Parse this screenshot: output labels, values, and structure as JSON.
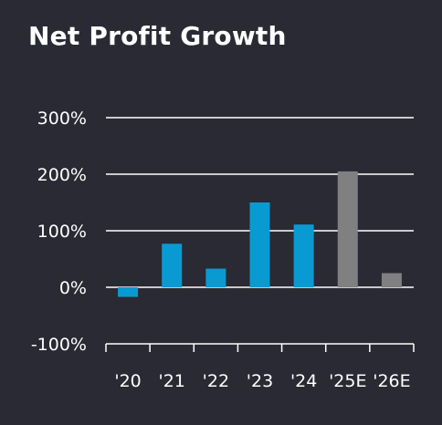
{
  "chart_data": {
    "type": "bar",
    "title": "Net Profit Growth",
    "categories": [
      "'20",
      "'21",
      "'22",
      "'23",
      "'24",
      "'25E",
      "'26E"
    ],
    "values": [
      -17,
      77,
      33,
      150,
      111,
      205,
      25
    ],
    "estimated": [
      false,
      false,
      false,
      false,
      false,
      true,
      true
    ],
    "yticks": [
      -100,
      0,
      100,
      200,
      300
    ],
    "ytick_labels": [
      "-100%",
      "0%",
      "100%",
      "200%",
      "300%"
    ],
    "ylim": [
      -100,
      300
    ],
    "xlabel": "",
    "ylabel": "",
    "grid": true,
    "colors": {
      "actual": "#0a9ad2",
      "estimate": "#808080",
      "grid": "#ffffff",
      "background": "#292a33"
    }
  }
}
